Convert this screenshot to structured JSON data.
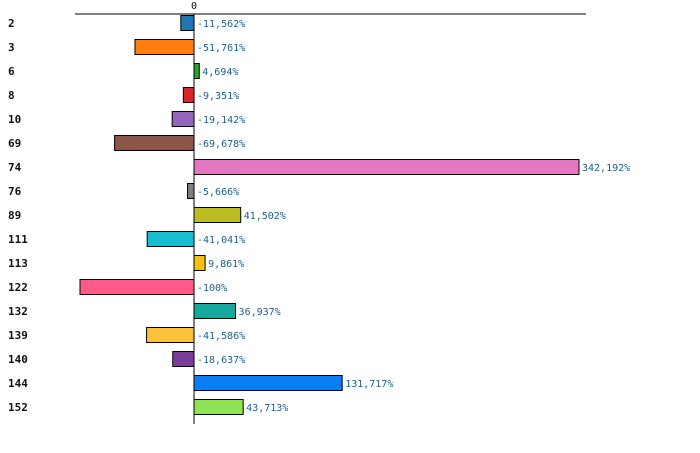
{
  "chart_data": {
    "type": "bar",
    "orientation": "horizontal",
    "zero_label": "0",
    "categories": [
      "2",
      "3",
      "6",
      "8",
      "10",
      "69",
      "74",
      "76",
      "89",
      "111",
      "113",
      "122",
      "132",
      "139",
      "140",
      "144",
      "152"
    ],
    "values": [
      -11.562,
      -51.761,
      4.694,
      -9.351,
      -19.142,
      -69.678,
      342.192,
      -5.666,
      41.502,
      -41.041,
      9.861,
      -100,
      36.937,
      -41.586,
      -18.637,
      131.717,
      43.713
    ],
    "value_labels": [
      "-11,562%",
      "-51,761%",
      "4,694%",
      "-9,351%",
      "-19,142%",
      "-69,678%",
      "342,192%",
      "-5,666%",
      "41,502%",
      "-41,041%",
      "9,861%",
      "-100%",
      "36,937%",
      "-41,586%",
      "-18,637%",
      "131,717%",
      "43,713%"
    ],
    "colors": [
      "#1f77b4",
      "#ff7f0e",
      "#2ca02c",
      "#d62728",
      "#9467bd",
      "#8c564b",
      "#e377c2",
      "#7f7f7f",
      "#bcbd22",
      "#17becf",
      "#f5c211",
      "#ff5a8a",
      "#16a99b",
      "#fbc13a",
      "#7a3d9a",
      "#0a7ff5",
      "#8ee455"
    ],
    "xlim": [
      -100,
      342.192
    ],
    "grid": false
  }
}
